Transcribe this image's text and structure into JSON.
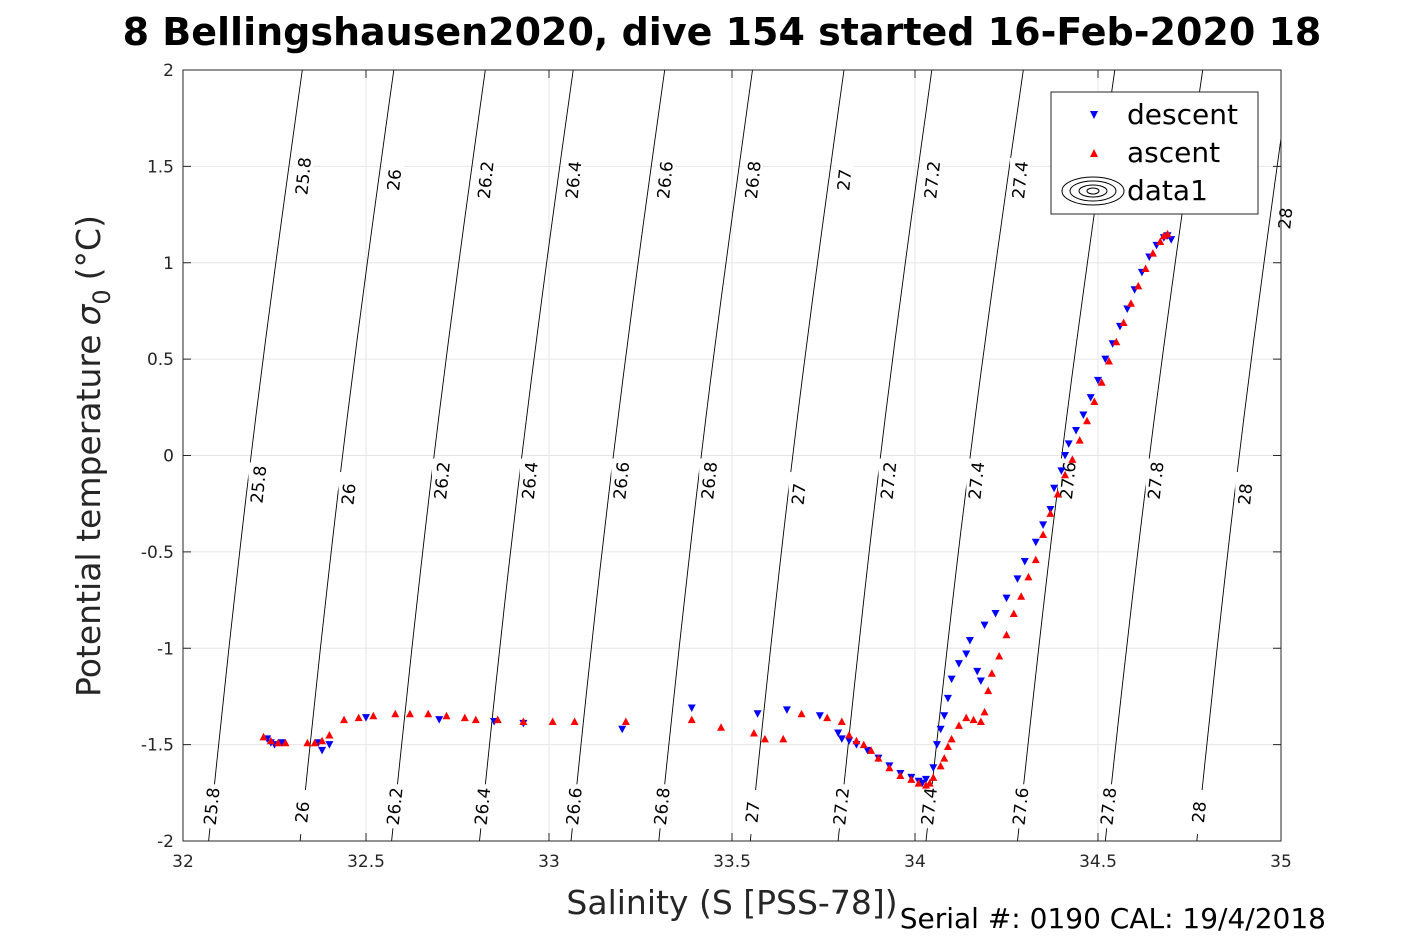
{
  "chart_data": {
    "type": "scatter",
    "title": "8 Bellingshausen2020, dive 154 started 16-Feb-2020 18",
    "xlabel": "Salinity (S [PSS-78])",
    "ylabel": "Potential temperature",
    "ylabel_symbol": "σ",
    "ylabel_subscript": "0",
    "ylabel_unit": "(°C)",
    "xlim": [
      32,
      35
    ],
    "ylim": [
      -2,
      2
    ],
    "x_ticks": [
      32,
      32.5,
      33,
      33.5,
      34,
      34.5,
      35
    ],
    "y_ticks": [
      -2,
      -1.5,
      -1,
      -0.5,
      0,
      0.5,
      1,
      1.5,
      2
    ],
    "x_tick_labels": [
      "32",
      "32.5",
      "33",
      "33.5",
      "34",
      "34.5",
      "35"
    ],
    "y_tick_labels": [
      "-2",
      "-1.5",
      "-1",
      "-0.5",
      "0",
      "0.5",
      "1",
      "1.5",
      "2"
    ],
    "grid": true,
    "legend": {
      "placement": "top-right",
      "entries": [
        {
          "name": "descent",
          "marker": "triangle-down",
          "color": "#0000ff"
        },
        {
          "name": "ascent",
          "marker": "triangle-up",
          "color": "#ff0000"
        },
        {
          "name": "data1",
          "marker": "contour",
          "color": "#000000"
        }
      ]
    },
    "contours": [
      {
        "label": "25.8",
        "x_at_bottom": 32.07,
        "x_at_top": 32.02,
        "label_positions": [
          [
            32.07,
            -1.82
          ],
          [
            32.15,
            -0.15
          ],
          [
            32.25,
            1.45
          ]
        ]
      },
      {
        "label": "26",
        "x_at_bottom": 32.32,
        "x_at_top": 32.27,
        "label_positions": [
          [
            32.32,
            -1.85
          ],
          [
            32.39,
            -0.2
          ],
          [
            32.48,
            1.43
          ]
        ]
      },
      {
        "label": "26.2",
        "x_at_bottom": 32.57,
        "x_at_top": 32.52,
        "label_positions": [
          [
            32.56,
            -1.82
          ],
          [
            32.63,
            -0.13
          ],
          [
            32.74,
            1.43
          ]
        ]
      },
      {
        "label": "26.4",
        "x_at_bottom": 32.81,
        "x_at_top": 32.76,
        "label_positions": [
          [
            32.82,
            -1.82
          ],
          [
            32.88,
            -0.13
          ],
          [
            32.98,
            1.43
          ]
        ]
      },
      {
        "label": "26.6",
        "x_at_bottom": 33.06,
        "x_at_top": 33.01,
        "label_positions": [
          [
            33.06,
            -1.82
          ],
          [
            33.13,
            -0.13
          ],
          [
            33.24,
            1.43
          ]
        ]
      },
      {
        "label": "26.8",
        "x_at_bottom": 33.3,
        "x_at_top": 33.25,
        "label_positions": [
          [
            33.31,
            -1.82
          ],
          [
            33.38,
            -0.13
          ],
          [
            33.49,
            1.43
          ]
        ]
      },
      {
        "label": "27",
        "x_at_bottom": 33.55,
        "x_at_top": 33.5,
        "label_positions": [
          [
            33.55,
            -1.85
          ],
          [
            33.62,
            -0.2
          ],
          [
            33.73,
            1.43
          ]
        ]
      },
      {
        "label": "27.2",
        "x_at_bottom": 33.79,
        "x_at_top": 33.74,
        "label_positions": [
          [
            33.8,
            -1.82
          ],
          [
            33.87,
            -0.13
          ],
          [
            33.98,
            1.43
          ]
        ]
      },
      {
        "label": "27.4",
        "x_at_bottom": 34.03,
        "x_at_top": 33.99,
        "label_positions": [
          [
            34.04,
            -1.82
          ],
          [
            34.12,
            -0.13
          ],
          [
            34.22,
            1.43
          ]
        ]
      },
      {
        "label": "27.6",
        "x_at_bottom": 34.28,
        "x_at_top": 34.24,
        "label_positions": [
          [
            34.28,
            -1.82
          ],
          [
            34.35,
            -0.13
          ]
        ]
      },
      {
        "label": "27.8",
        "x_at_bottom": 34.52,
        "x_at_top": 34.48,
        "label_positions": [
          [
            34.52,
            -1.82
          ],
          [
            34.6,
            -0.13
          ]
        ]
      },
      {
        "label": "28",
        "x_at_bottom": 34.77,
        "x_at_top": 34.72,
        "label_positions": [
          [
            34.77,
            -1.85
          ],
          [
            34.86,
            -0.2
          ],
          [
            34.96,
            1.23
          ]
        ]
      }
    ],
    "series": [
      {
        "name": "descent",
        "marker": "triangle-down",
        "color": "#0000ff",
        "points": [
          [
            32.23,
            -1.47
          ],
          [
            32.24,
            -1.49
          ],
          [
            32.25,
            -1.5
          ],
          [
            32.27,
            -1.49
          ],
          [
            32.38,
            -1.53
          ],
          [
            32.4,
            -1.5
          ],
          [
            32.37,
            -1.49
          ],
          [
            32.5,
            -1.36
          ],
          [
            32.7,
            -1.37
          ],
          [
            32.85,
            -1.38
          ],
          [
            32.93,
            -1.39
          ],
          [
            33.2,
            -1.42
          ],
          [
            33.39,
            -1.31
          ],
          [
            33.57,
            -1.34
          ],
          [
            33.65,
            -1.32
          ],
          [
            33.74,
            -1.35
          ],
          [
            33.79,
            -1.44
          ],
          [
            33.8,
            -1.47
          ],
          [
            33.82,
            -1.48
          ],
          [
            33.84,
            -1.5
          ],
          [
            33.87,
            -1.53
          ],
          [
            33.9,
            -1.57
          ],
          [
            33.93,
            -1.61
          ],
          [
            33.96,
            -1.65
          ],
          [
            33.99,
            -1.67
          ],
          [
            34.01,
            -1.69
          ],
          [
            34.02,
            -1.7
          ],
          [
            34.03,
            -1.68
          ],
          [
            34.05,
            -1.62
          ],
          [
            34.06,
            -1.5
          ],
          [
            34.07,
            -1.42
          ],
          [
            34.08,
            -1.35
          ],
          [
            34.09,
            -1.26
          ],
          [
            34.1,
            -1.16
          ],
          [
            34.12,
            -1.08
          ],
          [
            34.14,
            -1.03
          ],
          [
            34.15,
            -0.96
          ],
          [
            34.17,
            -1.12
          ],
          [
            34.18,
            -1.17
          ],
          [
            34.19,
            -0.88
          ],
          [
            34.22,
            -0.82
          ],
          [
            34.25,
            -0.74
          ],
          [
            34.28,
            -0.64
          ],
          [
            34.3,
            -0.55
          ],
          [
            34.33,
            -0.45
          ],
          [
            34.35,
            -0.36
          ],
          [
            34.37,
            -0.28
          ],
          [
            34.38,
            -0.17
          ],
          [
            34.4,
            -0.08
          ],
          [
            34.41,
            0.0
          ],
          [
            34.42,
            0.06
          ],
          [
            34.44,
            0.13
          ],
          [
            34.46,
            0.21
          ],
          [
            34.48,
            0.3
          ],
          [
            34.5,
            0.39
          ],
          [
            34.52,
            0.5
          ],
          [
            34.54,
            0.58
          ],
          [
            34.56,
            0.67
          ],
          [
            34.58,
            0.76
          ],
          [
            34.6,
            0.86
          ],
          [
            34.62,
            0.95
          ],
          [
            34.64,
            1.03
          ],
          [
            34.66,
            1.09
          ],
          [
            34.68,
            1.13
          ],
          [
            34.69,
            1.14
          ],
          [
            34.7,
            1.12
          ]
        ]
      },
      {
        "name": "ascent",
        "marker": "triangle-up",
        "color": "#ff0000",
        "points": [
          [
            32.22,
            -1.46
          ],
          [
            32.24,
            -1.48
          ],
          [
            32.26,
            -1.49
          ],
          [
            32.28,
            -1.49
          ],
          [
            32.34,
            -1.49
          ],
          [
            32.36,
            -1.49
          ],
          [
            32.38,
            -1.48
          ],
          [
            32.4,
            -1.45
          ],
          [
            32.44,
            -1.37
          ],
          [
            32.48,
            -1.36
          ],
          [
            32.52,
            -1.35
          ],
          [
            32.58,
            -1.34
          ],
          [
            32.62,
            -1.34
          ],
          [
            32.67,
            -1.34
          ],
          [
            32.72,
            -1.35
          ],
          [
            32.77,
            -1.36
          ],
          [
            32.8,
            -1.37
          ],
          [
            32.86,
            -1.37
          ],
          [
            32.93,
            -1.38
          ],
          [
            33.01,
            -1.38
          ],
          [
            33.07,
            -1.38
          ],
          [
            33.21,
            -1.38
          ],
          [
            33.39,
            -1.37
          ],
          [
            33.47,
            -1.41
          ],
          [
            33.56,
            -1.44
          ],
          [
            33.59,
            -1.47
          ],
          [
            33.64,
            -1.47
          ],
          [
            33.69,
            -1.34
          ],
          [
            33.76,
            -1.36
          ],
          [
            33.8,
            -1.38
          ],
          [
            33.82,
            -1.45
          ],
          [
            33.84,
            -1.48
          ],
          [
            33.86,
            -1.5
          ],
          [
            33.88,
            -1.53
          ],
          [
            33.9,
            -1.57
          ],
          [
            33.93,
            -1.62
          ],
          [
            33.96,
            -1.66
          ],
          [
            33.99,
            -1.68
          ],
          [
            34.01,
            -1.7
          ],
          [
            34.03,
            -1.71
          ],
          [
            34.04,
            -1.7
          ],
          [
            34.05,
            -1.67
          ],
          [
            34.07,
            -1.61
          ],
          [
            34.08,
            -1.57
          ],
          [
            34.09,
            -1.51
          ],
          [
            34.1,
            -1.47
          ],
          [
            34.12,
            -1.4
          ],
          [
            34.14,
            -1.36
          ],
          [
            34.16,
            -1.37
          ],
          [
            34.18,
            -1.38
          ],
          [
            34.19,
            -1.33
          ],
          [
            34.2,
            -1.22
          ],
          [
            34.21,
            -1.13
          ],
          [
            34.23,
            -1.04
          ],
          [
            34.25,
            -0.93
          ],
          [
            34.27,
            -0.82
          ],
          [
            34.29,
            -0.73
          ],
          [
            34.31,
            -0.63
          ],
          [
            34.33,
            -0.54
          ],
          [
            34.35,
            -0.41
          ],
          [
            34.37,
            -0.3
          ],
          [
            34.39,
            -0.2
          ],
          [
            34.41,
            -0.1
          ],
          [
            34.43,
            -0.02
          ],
          [
            34.45,
            0.08
          ],
          [
            34.47,
            0.18
          ],
          [
            34.49,
            0.28
          ],
          [
            34.51,
            0.38
          ],
          [
            34.53,
            0.49
          ],
          [
            34.55,
            0.59
          ],
          [
            34.57,
            0.69
          ],
          [
            34.59,
            0.79
          ],
          [
            34.61,
            0.88
          ],
          [
            34.63,
            0.97
          ],
          [
            34.65,
            1.05
          ],
          [
            34.67,
            1.11
          ],
          [
            34.68,
            1.14
          ],
          [
            34.69,
            1.15
          ]
        ]
      }
    ]
  },
  "footer": {
    "serial_text": "Serial #: 0190  CAL: 19/4/2018"
  }
}
